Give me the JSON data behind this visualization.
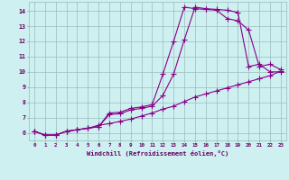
{
  "xlabel": "Windchill (Refroidissement éolien,°C)",
  "bg_color": "#cff0f0",
  "line_color": "#880088",
  "grid_color": "#99bbbb",
  "axis_color": "#660066",
  "xlim": [
    -0.5,
    23.5
  ],
  "ylim": [
    5.5,
    14.6
  ],
  "xticks": [
    0,
    1,
    2,
    3,
    4,
    5,
    6,
    7,
    8,
    9,
    10,
    11,
    12,
    13,
    14,
    15,
    16,
    17,
    18,
    19,
    20,
    21,
    22,
    23
  ],
  "yticks": [
    6,
    7,
    8,
    9,
    10,
    11,
    12,
    13,
    14
  ],
  "line1_x": [
    0,
    1,
    2,
    3,
    4,
    5,
    6,
    7,
    8,
    9,
    10,
    11,
    12,
    13,
    14,
    15,
    16,
    17,
    18,
    19,
    20,
    21,
    22,
    23
  ],
  "line1_y": [
    6.1,
    5.85,
    5.85,
    6.1,
    6.2,
    6.3,
    6.4,
    7.2,
    7.25,
    7.5,
    7.6,
    7.75,
    8.45,
    9.85,
    12.1,
    14.25,
    14.15,
    14.1,
    14.05,
    13.9,
    10.35,
    10.5,
    10.0,
    10.0
  ],
  "line2_x": [
    0,
    1,
    2,
    3,
    4,
    5,
    6,
    7,
    8,
    9,
    10,
    11,
    12,
    13,
    14,
    15,
    16,
    17,
    18,
    19,
    20,
    21,
    22,
    23
  ],
  "line2_y": [
    6.1,
    5.85,
    5.85,
    6.1,
    6.2,
    6.3,
    6.4,
    7.3,
    7.35,
    7.6,
    7.7,
    7.85,
    9.85,
    12.0,
    14.25,
    14.15,
    14.1,
    14.05,
    13.5,
    13.35,
    12.75,
    10.35,
    10.5,
    10.15
  ],
  "line3_x": [
    0,
    1,
    2,
    3,
    4,
    5,
    6,
    7,
    8,
    9,
    10,
    11,
    12,
    13,
    14,
    15,
    16,
    17,
    18,
    19,
    20,
    21,
    22,
    23
  ],
  "line3_y": [
    6.1,
    5.85,
    5.85,
    6.1,
    6.2,
    6.3,
    6.5,
    6.6,
    6.75,
    6.9,
    7.1,
    7.3,
    7.55,
    7.75,
    8.05,
    8.35,
    8.55,
    8.75,
    8.95,
    9.15,
    9.35,
    9.55,
    9.75,
    10.05
  ]
}
